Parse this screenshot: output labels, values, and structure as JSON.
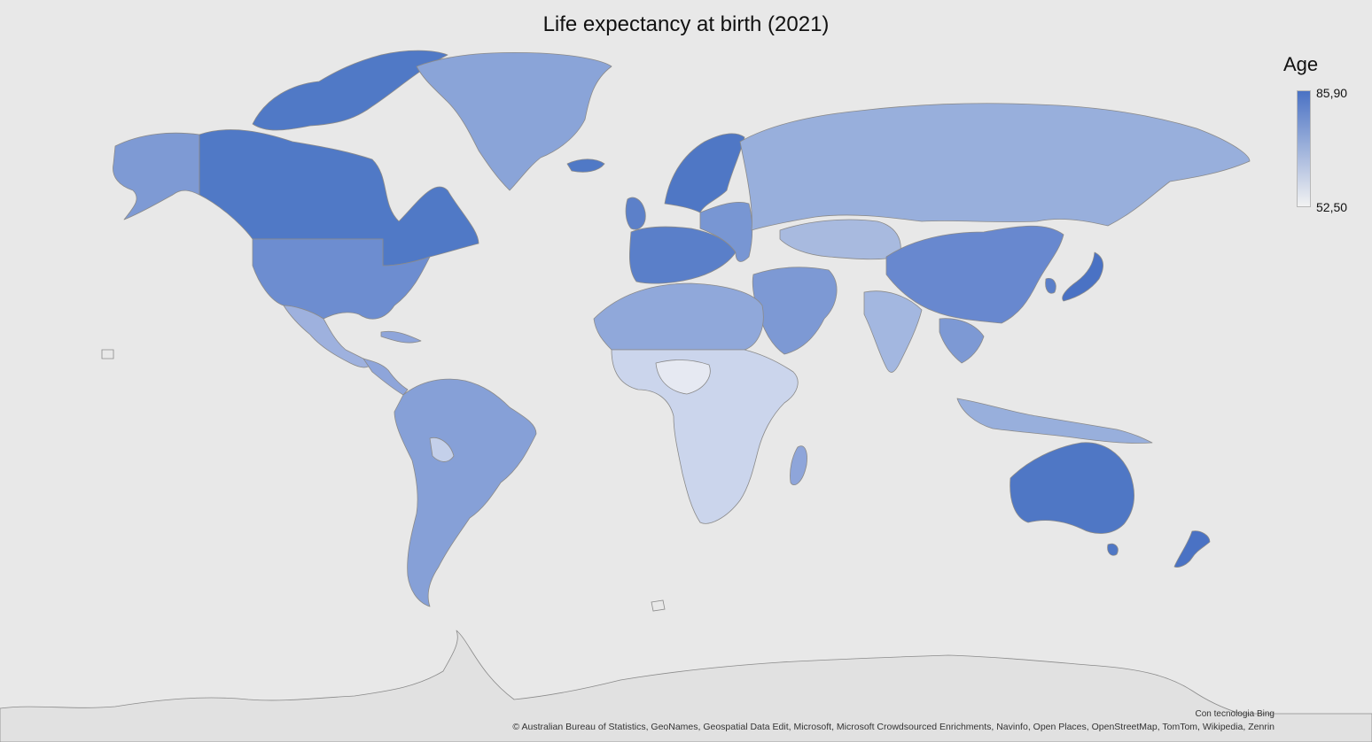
{
  "title": "Life expectancy at birth (2021)",
  "legend": {
    "title": "Age",
    "max_label": "85,90",
    "min_label": "52,50",
    "max_value": 85.9,
    "min_value": 52.5,
    "color_high": "#4a72c4",
    "color_low": "#f2f2f2"
  },
  "powered_by": "Con tecnologia Bing",
  "attribution": "© Australian Bureau of Statistics, GeoNames, Geospatial Data Edit, Microsoft, Microsoft Crowdsourced Enrichments, Navinfo, Open Places, OpenStreetMap, TomTom, Wikipedia, Zenrin",
  "colors": {
    "background": "#e8e8e8",
    "border": "#8a8a8a",
    "no_data": "#e1e1e1"
  }
}
